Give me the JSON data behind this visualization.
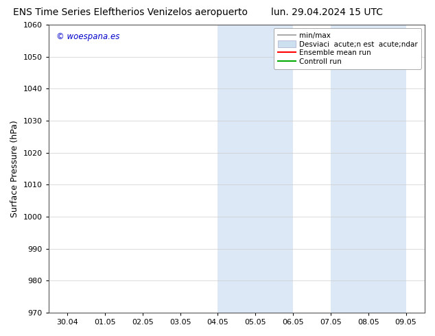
{
  "title_left": "ENS Time Series Eleftherios Venizelos aeropuerto",
  "title_right": "lun. 29.04.2024 15 UTC",
  "ylabel": "Surface Pressure (hPa)",
  "watermark": "© woespana.es",
  "watermark_color": "#0000cc",
  "ylim": [
    970,
    1060
  ],
  "yticks": [
    970,
    980,
    990,
    1000,
    1010,
    1020,
    1030,
    1040,
    1050,
    1060
  ],
  "xtick_labels": [
    "30.04",
    "01.05",
    "02.05",
    "03.05",
    "04.05",
    "05.05",
    "06.05",
    "07.05",
    "08.05",
    "09.05"
  ],
  "background_color": "#ffffff",
  "plot_bg_color": "#ffffff",
  "shaded_regions": [
    {
      "xstart": 4,
      "xend": 6,
      "color": "#dce8f5"
    },
    {
      "xstart": 7,
      "xend": 9,
      "color": "#dce8f5"
    }
  ],
  "legend_labels": [
    "min/max",
    "Desviaci  acute;n est  acute;ndar",
    "Ensemble mean run",
    "Controll run"
  ],
  "legend_colors_line": [
    "#aaaaaa",
    null,
    "#ff0000",
    "#00aa00"
  ],
  "legend_patch_color": "#cce0f0",
  "title_fontsize": 10,
  "tick_fontsize": 8,
  "ylabel_fontsize": 9,
  "legend_fontsize": 7.5
}
